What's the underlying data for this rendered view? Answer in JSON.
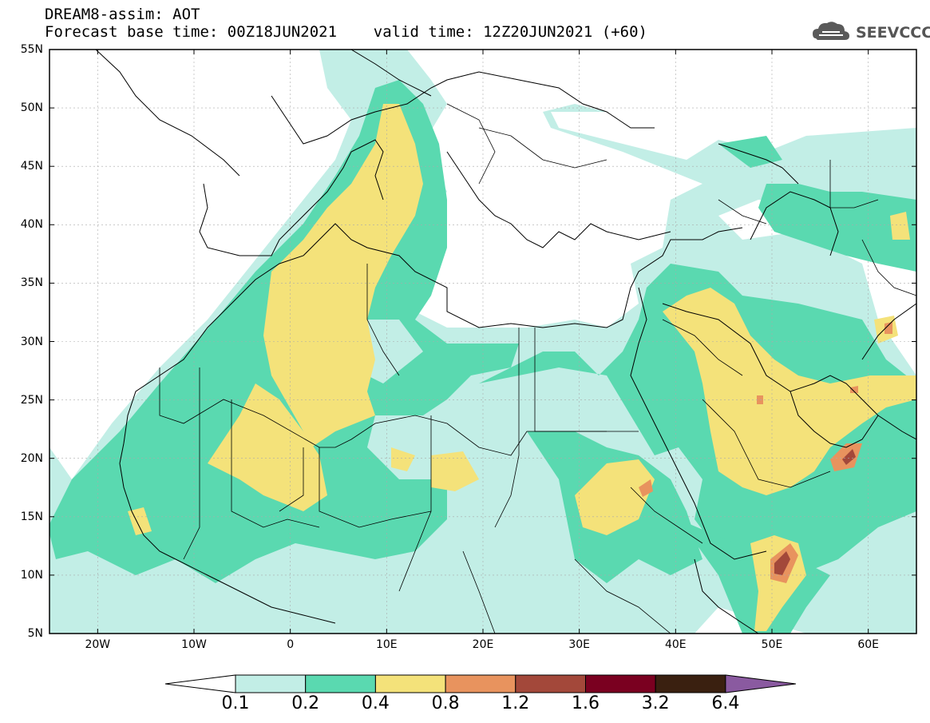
{
  "title": {
    "line1": "DREAM8-assim: AOT",
    "line2": "Forecast base time: 00Z18JUN2021    valid time: 12Z20JUN2021 (+60)"
  },
  "logo": {
    "text": "SEEVCCC",
    "icon": "cloud-icon",
    "color": "#5a5a5a"
  },
  "map": {
    "lat_labels": [
      "55N",
      "50N",
      "45N",
      "40N",
      "35N",
      "30N",
      "25N",
      "20N",
      "15N",
      "10N",
      "5N"
    ],
    "lon_labels": [
      "20W",
      "10W",
      "0",
      "10E",
      "20E",
      "30E",
      "40E",
      "50E",
      "60E"
    ],
    "lon_range": [
      -25,
      65
    ],
    "lat_range": [
      5,
      55
    ]
  },
  "colorbar": {
    "labels": [
      "0.1",
      "0.2",
      "0.4",
      "0.8",
      "1.2",
      "1.6",
      "3.2",
      "6.4"
    ],
    "colors": [
      "#ffffff",
      "#c2eee6",
      "#5ad9b0",
      "#f4e27a",
      "#e8935e",
      "#a3483a",
      "#7a0020",
      "#3a2010",
      "#8a5aa0"
    ]
  }
}
